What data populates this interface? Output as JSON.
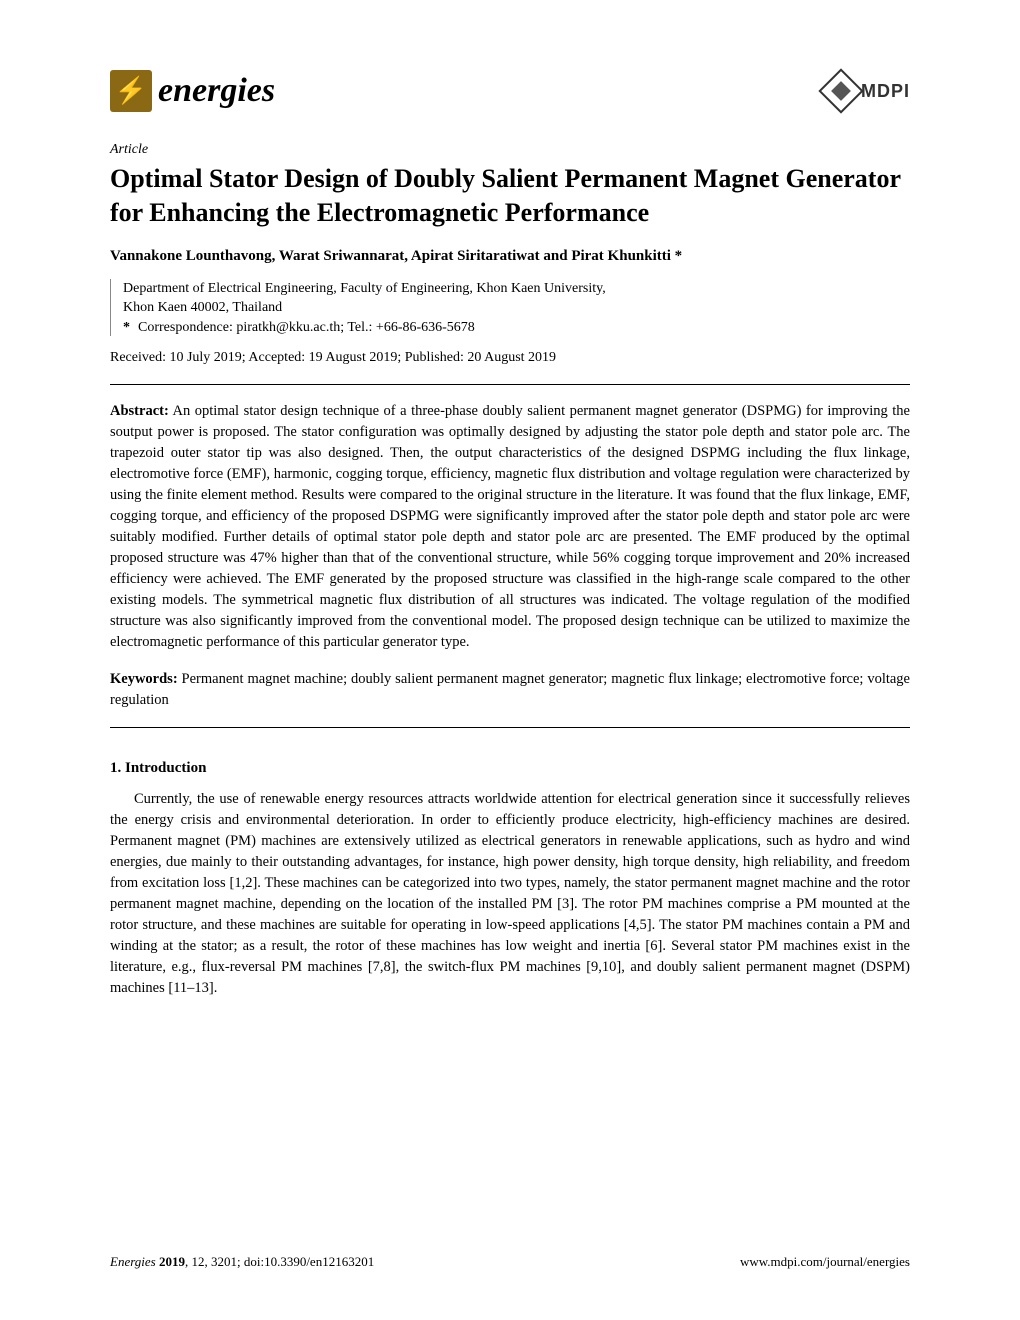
{
  "journal": {
    "name": "energies",
    "logo_bg_color": "#8b6914",
    "logo_icon_color": "#ffda44"
  },
  "publisher": {
    "name": "MDPI"
  },
  "article_type": "Article",
  "title": "Optimal Stator Design of Doubly Salient Permanent Magnet Generator for Enhancing the Electromagnetic Performance",
  "authors": "Vannakone Lounthavong, Warat Sriwannarat, Apirat Siritaratiwat and Pirat Khunkitti *",
  "affiliation": {
    "line1": "Department of Electrical Engineering, Faculty of Engineering, Khon Kaen University,",
    "line2": "Khon Kaen 40002, Thailand"
  },
  "correspondence": "Correspondence: piratkh@kku.ac.th; Tel.: +66-86-636-5678",
  "received": "Received: 10 July 2019; Accepted: 19 August 2019; Published: 20 August 2019",
  "abstract": {
    "label": "Abstract:",
    "text": " An optimal stator design technique of a three-phase doubly salient permanent magnet generator (DSPMG) for improving the soutput power is proposed. The stator configuration was optimally designed by adjusting the stator pole depth and stator pole arc. The trapezoid outer stator tip was also designed. Then, the output characteristics of the designed DSPMG including the flux linkage, electromotive force (EMF), harmonic, cogging torque, efficiency, magnetic flux distribution and voltage regulation were characterized by using the finite element method. Results were compared to the original structure in the literature. It was found that the flux linkage, EMF, cogging torque, and efficiency of the proposed DSPMG were significantly improved after the stator pole depth and stator pole arc were suitably modified. Further details of optimal stator pole depth and stator pole arc are presented. The EMF produced by the optimal proposed structure was 47% higher than that of the conventional structure, while 56% cogging torque improvement and 20% increased efficiency were achieved. The EMF generated by the proposed structure was classified in the high-range scale compared to the other existing models. The symmetrical magnetic flux distribution of all structures was indicated. The voltage regulation of the modified structure was also significantly improved from the conventional model. The proposed design technique can be utilized to maximize the electromagnetic performance of this particular generator type."
  },
  "keywords": {
    "label": "Keywords:",
    "text": " Permanent magnet machine; doubly salient permanent magnet generator; magnetic flux linkage; electromotive force; voltage regulation"
  },
  "section": {
    "heading": "1. Introduction",
    "paragraph": "Currently, the use of renewable energy resources attracts worldwide attention for electrical generation since it successfully relieves the energy crisis and environmental deterioration. In order to efficiently produce electricity, high-efficiency machines are desired. Permanent magnet (PM) machines are extensively utilized as electrical generators in renewable applications, such as hydro and wind energies, due mainly to their outstanding advantages, for instance, high power density, high torque density, high reliability, and freedom from excitation loss [1,2]. These machines can be categorized into two types, namely, the stator permanent magnet machine and the rotor permanent magnet machine, depending on the location of the installed PM [3]. The rotor PM machines comprise a PM mounted at the rotor structure, and these machines are suitable for operating in low-speed applications [4,5]. The stator PM machines contain a PM and winding at the stator; as a result, the rotor of these machines has low weight and inertia [6]. Several stator PM machines exist in the literature, e.g., flux-reversal PM machines [7,8], the switch-flux PM machines [9,10], and doubly salient permanent magnet (DSPM) machines [11–13]."
  },
  "footer": {
    "journal_italic": "Energies",
    "year": "2019",
    "citation_rest": ", 12, 3201; doi:10.3390/en12163201",
    "url": "www.mdpi.com/journal/energies"
  }
}
